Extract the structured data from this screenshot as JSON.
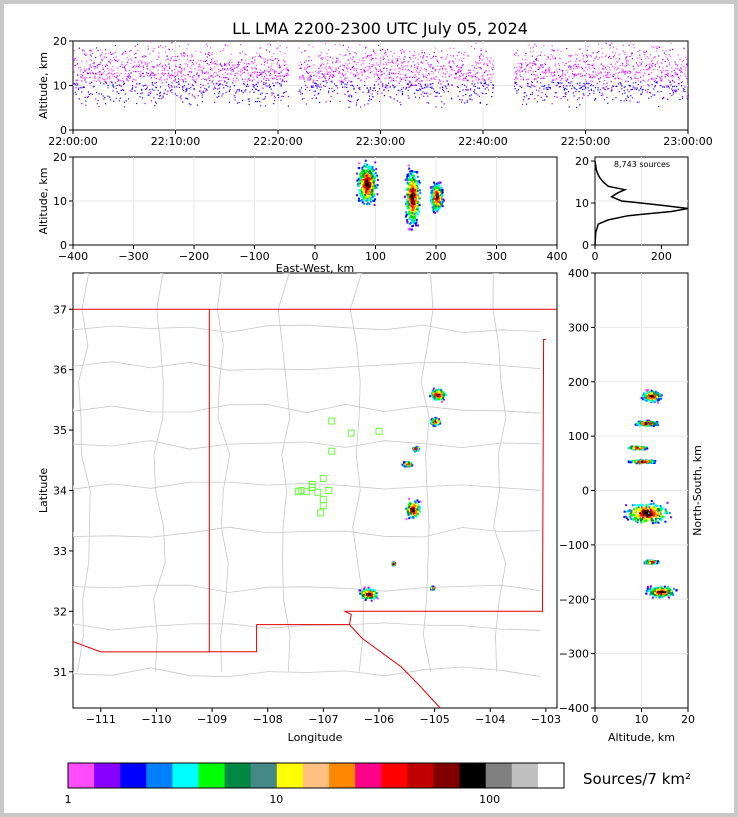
{
  "title": "LL LMA 2200-2300 UTC July 05, 2024",
  "colors": {
    "colorbar": [
      "#ff4cff",
      "#8800ff",
      "#7a00ff",
      "#0000ff",
      "#0010ff",
      "#0080ff",
      "#00ffff",
      "#00ff00",
      "#008844",
      "#448888",
      "#ffff00",
      "#ffc080",
      "#ff8800",
      "#ff0088",
      "#ff0000",
      "#c00000",
      "#800000",
      "#000000",
      "#808080",
      "#c0c0c0",
      "#ffffff"
    ],
    "state_border": "#e00000",
    "county_border": "#c8c8c8",
    "station_marker": "#66ff33"
  },
  "chart_data": [
    {
      "id": "time_height",
      "type": "scatter",
      "ylabel": "Altitude, km",
      "ylim": [
        0,
        20
      ],
      "yticks": [
        "0",
        "10",
        "20"
      ],
      "xticks": [
        "22:00:00",
        "22:10:00",
        "22:20:00",
        "22:30:00",
        "22:40:00",
        "22:50:00",
        "23:00:00"
      ],
      "xlim_minutes": [
        0,
        60
      ],
      "activity_minutes": [
        [
          0,
          21
        ],
        [
          22,
          41
        ],
        [
          43,
          60
        ]
      ],
      "altitude_band_km": [
        5,
        20
      ]
    },
    {
      "id": "ew_altitude",
      "type": "heatmap",
      "xlabel": "East-West, km",
      "ylabel": "Altitude, km",
      "xlim": [
        -400,
        400
      ],
      "ylim": [
        0,
        20
      ],
      "xticks": [
        "−400",
        "−300",
        "−200",
        "−100",
        "0",
        "100",
        "200",
        "300",
        "400"
      ],
      "yticks": [
        "0",
        "10",
        "20"
      ],
      "clusters": [
        {
          "x": 85,
          "y": 14,
          "w": 40,
          "h": 12
        },
        {
          "x": 160,
          "y": 11,
          "w": 30,
          "h": 16
        },
        {
          "x": 200,
          "y": 11,
          "w": 25,
          "h": 8
        }
      ]
    },
    {
      "id": "altitude_histogram",
      "type": "line",
      "annotation": "8,743 sources",
      "xlim": [
        0,
        280
      ],
      "ylim": [
        0,
        21
      ],
      "xticks": [
        "0",
        "200"
      ],
      "yticks": [
        "0",
        "10",
        "20"
      ],
      "profile": [
        [
          0,
          0
        ],
        [
          2,
          3
        ],
        [
          10,
          5
        ],
        [
          40,
          6
        ],
        [
          100,
          7
        ],
        [
          230,
          8
        ],
        [
          280,
          8.7
        ],
        [
          200,
          9.5
        ],
        [
          80,
          10.5
        ],
        [
          50,
          11.5
        ],
        [
          70,
          12.5
        ],
        [
          90,
          13.2
        ],
        [
          40,
          14
        ],
        [
          25,
          15
        ],
        [
          15,
          16
        ],
        [
          8,
          17
        ],
        [
          4,
          18
        ],
        [
          2,
          19
        ],
        [
          0,
          20
        ]
      ]
    },
    {
      "id": "plan_view",
      "type": "heatmap",
      "xlabel": "Longitude",
      "ylabel": "Latitude",
      "xlim": [
        -111.5,
        -102.8
      ],
      "ylim": [
        30.4,
        37.6
      ],
      "xticks": [
        "−111",
        "−110",
        "−109",
        "−108",
        "−107",
        "−106",
        "−105",
        "−104",
        "−103"
      ],
      "yticks": [
        "31",
        "32",
        "33",
        "34",
        "35",
        "36",
        "37"
      ],
      "clusters": [
        {
          "lon": -104.95,
          "lat": 35.6,
          "w": 0.35,
          "h": 0.25
        },
        {
          "lon": -105.0,
          "lat": 35.15,
          "w": 0.2,
          "h": 0.15
        },
        {
          "lon": -105.35,
          "lat": 34.7,
          "w": 0.12,
          "h": 0.08
        },
        {
          "lon": -105.5,
          "lat": 34.45,
          "w": 0.2,
          "h": 0.1
        },
        {
          "lon": -105.4,
          "lat": 33.7,
          "w": 0.35,
          "h": 0.4
        },
        {
          "lon": -105.75,
          "lat": 32.8,
          "w": 0.06,
          "h": 0.06
        },
        {
          "lon": -106.2,
          "lat": 32.3,
          "w": 0.4,
          "h": 0.25
        },
        {
          "lon": -105.05,
          "lat": 32.4,
          "w": 0.08,
          "h": 0.06
        }
      ],
      "stations": [
        [
          -106.85,
          35.15
        ],
        [
          -106.5,
          34.95
        ],
        [
          -106.0,
          34.98
        ],
        [
          -106.85,
          34.65
        ],
        [
          -107.0,
          34.2
        ],
        [
          -107.2,
          34.05
        ],
        [
          -107.4,
          34.0
        ],
        [
          -107.3,
          33.98
        ],
        [
          -107.1,
          33.97
        ],
        [
          -106.9,
          34.0
        ],
        [
          -107.0,
          33.85
        ],
        [
          -107.0,
          33.75
        ],
        [
          -107.05,
          33.63
        ],
        [
          -107.2,
          34.1
        ],
        [
          -107.45,
          33.98
        ]
      ]
    },
    {
      "id": "ns_altitude",
      "type": "heatmap",
      "xlabel": "Altitude, km",
      "ylabel": "North-South, km",
      "xlim": [
        0,
        20
      ],
      "ylim": [
        -400,
        400
      ],
      "xticks": [
        "0",
        "10",
        "20"
      ],
      "yticks": [
        "400",
        "300",
        "200",
        "100",
        "0",
        "−100",
        "−200",
        "−300",
        "−400"
      ],
      "clusters": [
        {
          "x": 12,
          "y": 175,
          "w": 5,
          "h": 25
        },
        {
          "x": 11,
          "y": 125,
          "w": 6,
          "h": 12
        },
        {
          "x": 9,
          "y": 80,
          "w": 5,
          "h": 8
        },
        {
          "x": 10,
          "y": 55,
          "w": 7,
          "h": 8
        },
        {
          "x": 11,
          "y": -40,
          "w": 12,
          "h": 50
        },
        {
          "x": 12,
          "y": -130,
          "w": 4,
          "h": 8
        },
        {
          "x": 14,
          "y": -185,
          "w": 8,
          "h": 25
        }
      ]
    },
    {
      "id": "colorbar",
      "type": "heatmap",
      "label": "Sources/7 km²",
      "ticks": [
        "1",
        "10",
        "100"
      ]
    }
  ]
}
